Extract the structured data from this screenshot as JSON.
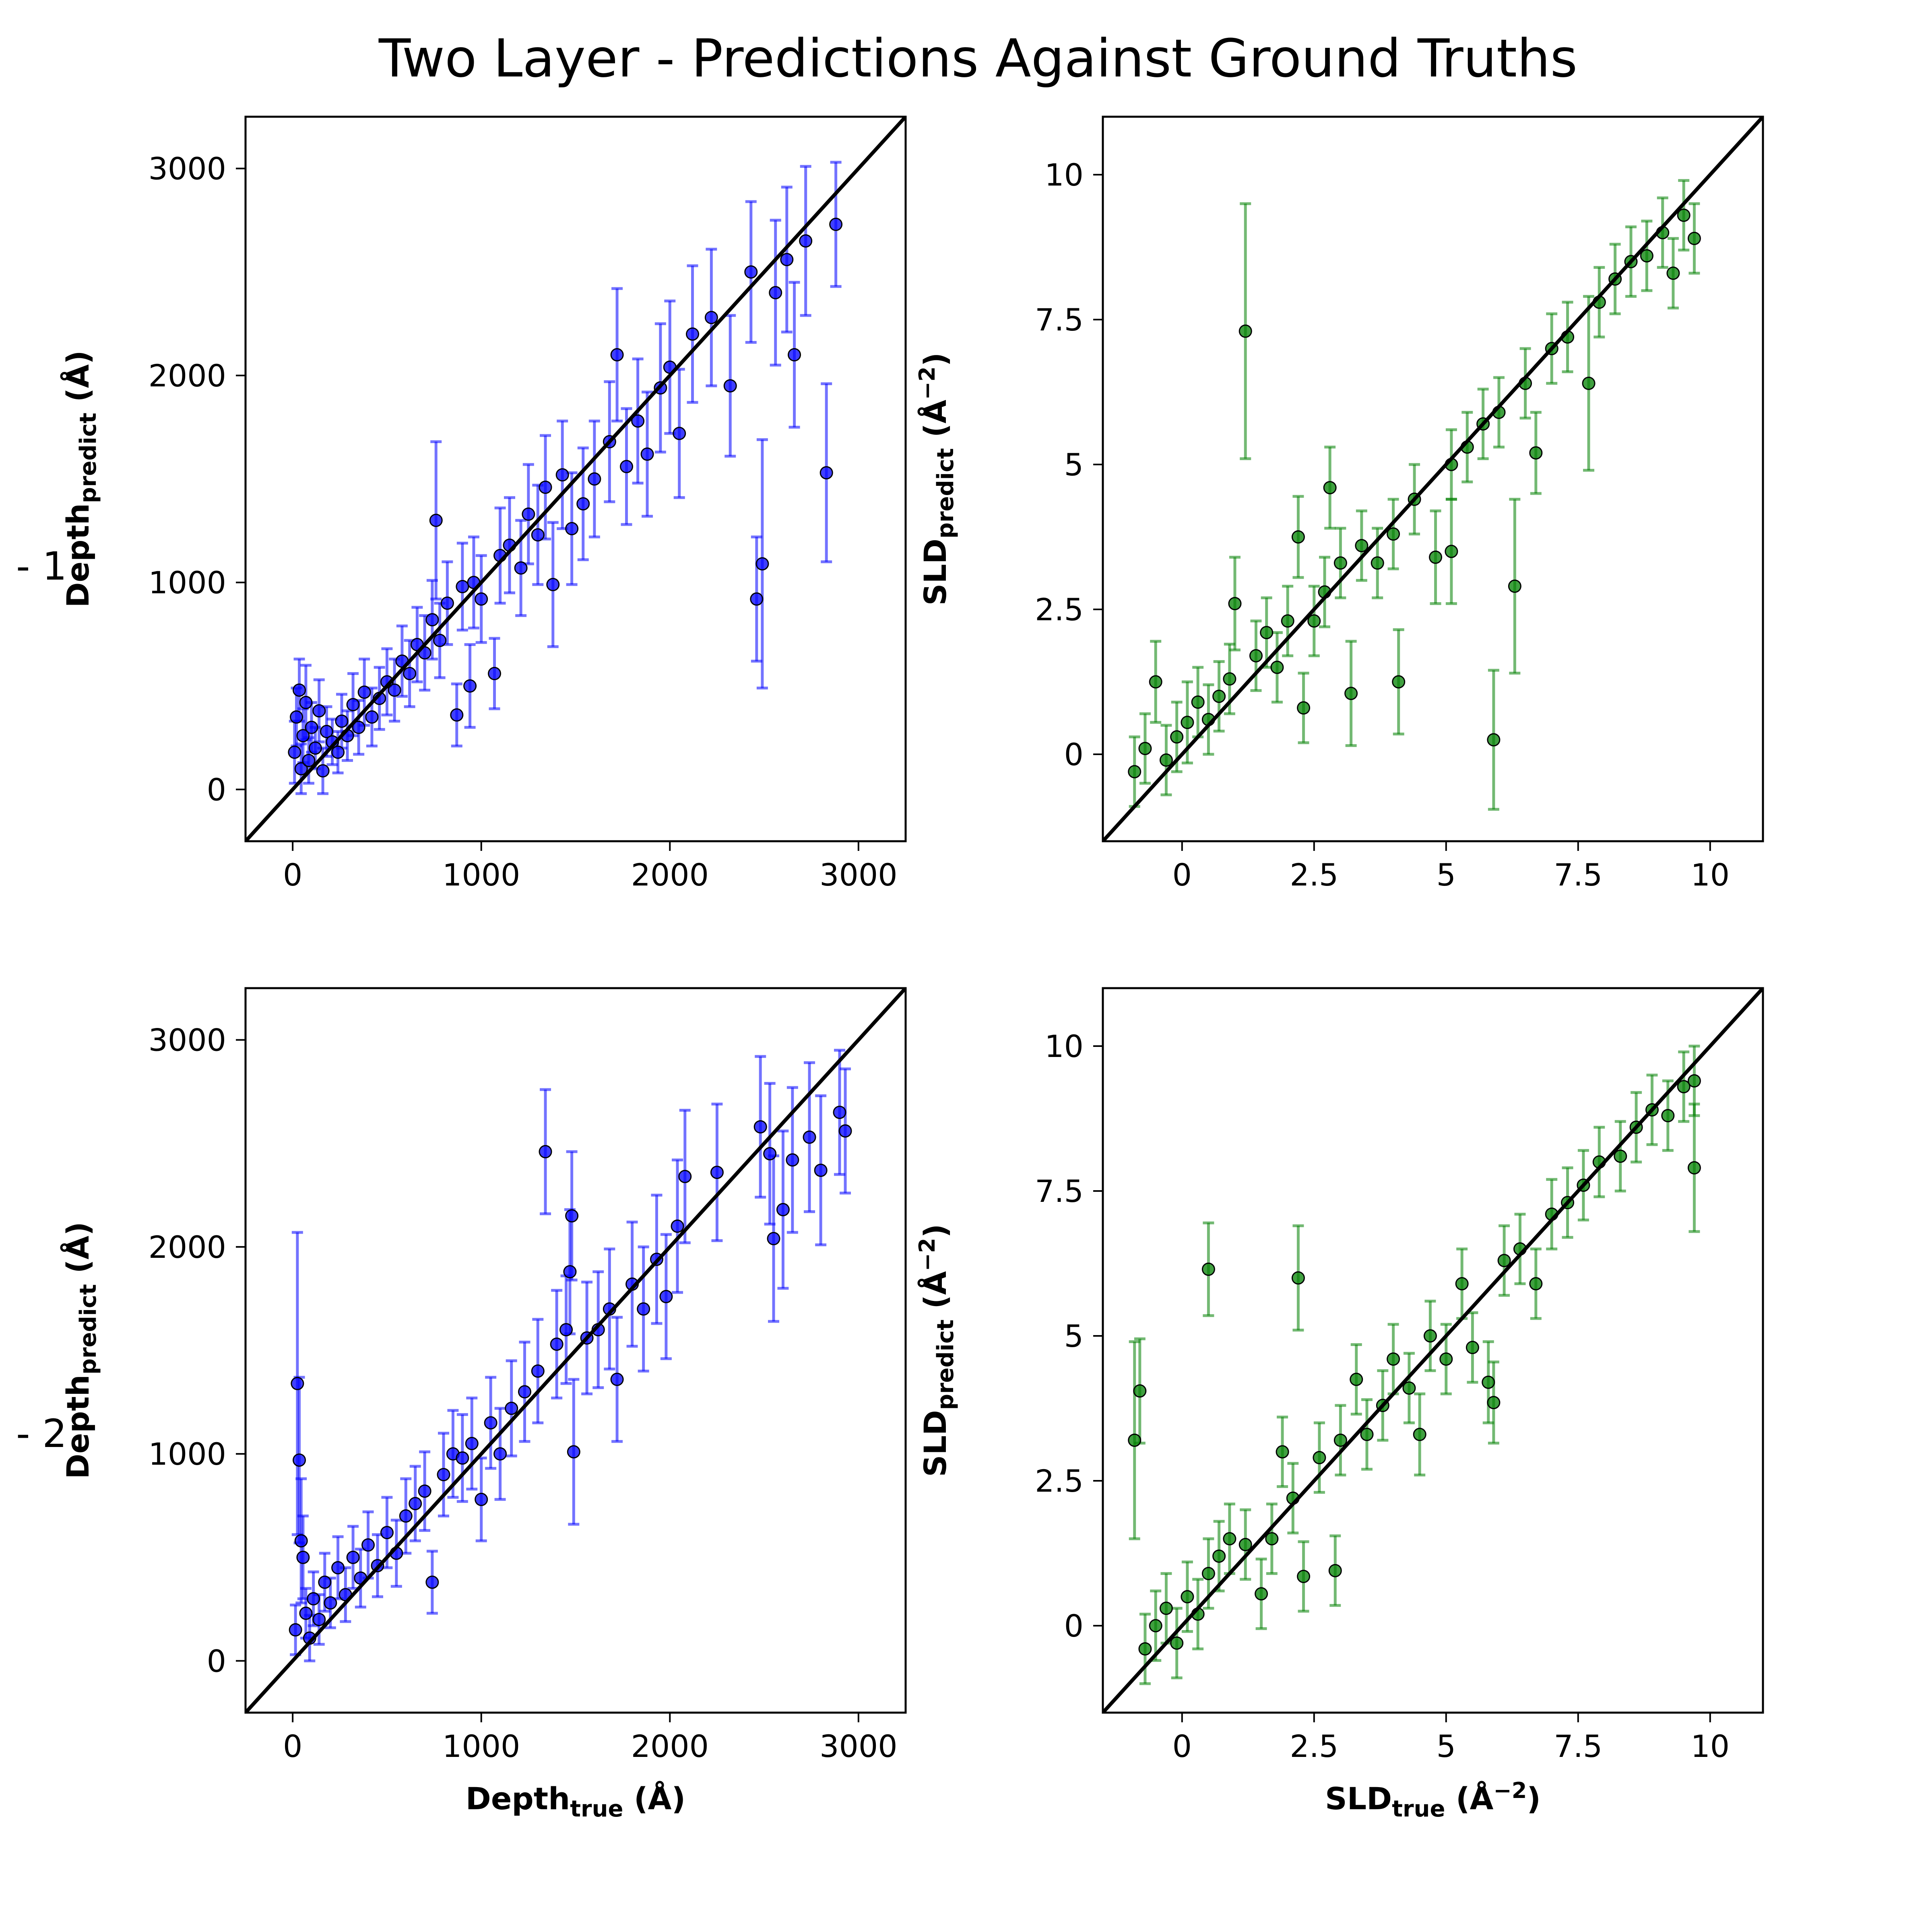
{
  "title": "Two Layer - Predictions Against Ground Truths",
  "row_labels": [
    "1",
    "2"
  ],
  "colors": {
    "depth_series": "#0000ff",
    "sld_series": "#008000",
    "identity_line": "#000000",
    "marker_edge": "#000000"
  },
  "chart_data": [
    {
      "id": "depth-layer-1",
      "type": "scatter",
      "title": "",
      "xlabel": "",
      "ylabel": {
        "main": "Depth",
        "sub": "predict",
        "unit": " (Å)"
      },
      "xlim": [
        -250,
        3250
      ],
      "ylim": [
        -250,
        3250
      ],
      "xticks": [
        0,
        1000,
        2000,
        3000
      ],
      "xtick_labels": [
        "0",
        "1000",
        "2000",
        "3000"
      ],
      "yticks": [
        0,
        1000,
        2000,
        3000
      ],
      "ytick_labels": [
        "0",
        "1000",
        "2000",
        "3000"
      ],
      "grid": false,
      "identity_line": true,
      "points": [
        [
          10,
          180,
          150
        ],
        [
          20,
          350,
          140
        ],
        [
          35,
          480,
          150
        ],
        [
          45,
          100,
          120
        ],
        [
          55,
          260,
          130
        ],
        [
          70,
          420,
          180
        ],
        [
          85,
          140,
          110
        ],
        [
          100,
          300,
          120
        ],
        [
          120,
          200,
          100
        ],
        [
          140,
          380,
          150
        ],
        [
          160,
          90,
          110
        ],
        [
          180,
          280,
          120
        ],
        [
          210,
          230,
          110
        ],
        [
          240,
          180,
          100
        ],
        [
          260,
          330,
          130
        ],
        [
          290,
          260,
          120
        ],
        [
          320,
          410,
          150
        ],
        [
          350,
          300,
          130
        ],
        [
          380,
          470,
          160
        ],
        [
          420,
          350,
          140
        ],
        [
          460,
          440,
          150
        ],
        [
          500,
          520,
          160
        ],
        [
          540,
          480,
          150
        ],
        [
          580,
          620,
          170
        ],
        [
          620,
          560,
          160
        ],
        [
          660,
          700,
          180
        ],
        [
          700,
          660,
          180
        ],
        [
          740,
          820,
          190
        ],
        [
          780,
          720,
          180
        ],
        [
          820,
          900,
          200
        ],
        [
          870,
          360,
          150
        ],
        [
          900,
          980,
          210
        ],
        [
          940,
          500,
          200
        ],
        [
          960,
          1000,
          220
        ],
        [
          1000,
          920,
          210
        ],
        [
          1070,
          560,
          170
        ],
        [
          1100,
          1130,
          230
        ],
        [
          1150,
          1180,
          230
        ],
        [
          1210,
          1070,
          230
        ],
        [
          1250,
          1330,
          240
        ],
        [
          1300,
          1230,
          240
        ],
        [
          1340,
          1460,
          250
        ],
        [
          1380,
          990,
          300
        ],
        [
          1430,
          1520,
          260
        ],
        [
          1480,
          1260,
          270
        ],
        [
          1540,
          1380,
          270
        ],
        [
          1600,
          1500,
          280
        ],
        [
          1680,
          1680,
          290
        ],
        [
          1720,
          2100,
          320
        ],
        [
          1770,
          1560,
          280
        ],
        [
          1830,
          1780,
          300
        ],
        [
          1880,
          1620,
          300
        ],
        [
          1950,
          1940,
          310
        ],
        [
          2000,
          2040,
          320
        ],
        [
          2050,
          1720,
          310
        ],
        [
          2120,
          2200,
          330
        ],
        [
          2220,
          2280,
          330
        ],
        [
          2320,
          1950,
          340
        ],
        [
          2430,
          2500,
          340
        ],
        [
          2460,
          920,
          300
        ],
        [
          2490,
          1090,
          600
        ],
        [
          2560,
          2400,
          350
        ],
        [
          2620,
          2560,
          350
        ],
        [
          2660,
          2100,
          350
        ],
        [
          2720,
          2650,
          360
        ],
        [
          2830,
          1530,
          430
        ],
        [
          2880,
          2730,
          300
        ],
        [
          760,
          1300,
          380
        ]
      ]
    },
    {
      "id": "sld-layer-1",
      "type": "scatter",
      "title": "",
      "xlabel": "",
      "ylabel": {
        "main": "SLD",
        "sub": "predict",
        "unit": " (Å",
        "sup": "−2",
        "unit_close": ")"
      },
      "xlim": [
        -1.5,
        11.0
      ],
      "ylim": [
        -1.5,
        11.0
      ],
      "xticks": [
        0,
        2.5,
        5,
        7.5,
        10
      ],
      "xtick_labels": [
        "0",
        "2.5",
        "5",
        "7.5",
        "10"
      ],
      "yticks": [
        0,
        2.5,
        5,
        7.5,
        10
      ],
      "ytick_labels": [
        "0",
        "2.5",
        "5",
        "7.5",
        "10"
      ],
      "grid": false,
      "identity_line": true,
      "points": [
        [
          -0.9,
          -0.3,
          0.6
        ],
        [
          -0.7,
          0.1,
          0.6
        ],
        [
          -0.5,
          1.25,
          0.7
        ],
        [
          -0.3,
          -0.1,
          0.6
        ],
        [
          -0.1,
          0.3,
          0.6
        ],
        [
          0.1,
          0.55,
          0.7
        ],
        [
          0.3,
          0.9,
          0.6
        ],
        [
          0.5,
          0.6,
          0.6
        ],
        [
          0.7,
          1.0,
          0.6
        ],
        [
          0.9,
          1.3,
          0.6
        ],
        [
          1.0,
          2.6,
          0.8
        ],
        [
          1.2,
          7.3,
          2.2
        ],
        [
          1.4,
          1.7,
          0.6
        ],
        [
          1.6,
          2.1,
          0.6
        ],
        [
          1.8,
          1.5,
          0.6
        ],
        [
          2.0,
          2.3,
          0.6
        ],
        [
          2.2,
          3.75,
          0.7
        ],
        [
          2.3,
          0.8,
          0.6
        ],
        [
          2.5,
          2.3,
          0.6
        ],
        [
          2.7,
          2.8,
          0.6
        ],
        [
          2.8,
          4.6,
          0.7
        ],
        [
          3.0,
          3.3,
          0.6
        ],
        [
          3.2,
          1.05,
          0.9
        ],
        [
          3.4,
          3.6,
          0.6
        ],
        [
          3.7,
          3.3,
          0.6
        ],
        [
          4.0,
          3.8,
          0.6
        ],
        [
          4.1,
          1.25,
          0.9
        ],
        [
          4.4,
          4.4,
          0.6
        ],
        [
          4.8,
          3.4,
          0.8
        ],
        [
          5.1,
          5.0,
          0.6
        ],
        [
          5.1,
          3.5,
          0.9
        ],
        [
          5.4,
          5.3,
          0.6
        ],
        [
          5.7,
          5.7,
          0.6
        ],
        [
          5.9,
          0.25,
          1.2
        ],
        [
          6.0,
          5.9,
          0.6
        ],
        [
          6.3,
          2.9,
          1.5
        ],
        [
          6.5,
          6.4,
          0.6
        ],
        [
          6.7,
          5.2,
          0.7
        ],
        [
          7.0,
          7.0,
          0.6
        ],
        [
          7.3,
          7.2,
          0.6
        ],
        [
          7.7,
          6.4,
          1.5
        ],
        [
          7.9,
          7.8,
          0.6
        ],
        [
          8.2,
          8.2,
          0.6
        ],
        [
          8.5,
          8.5,
          0.6
        ],
        [
          8.8,
          8.6,
          0.6
        ],
        [
          9.1,
          9.0,
          0.6
        ],
        [
          9.3,
          8.3,
          0.6
        ],
        [
          9.5,
          9.3,
          0.6
        ],
        [
          9.7,
          8.9,
          0.6
        ]
      ]
    },
    {
      "id": "depth-layer-2",
      "type": "scatter",
      "title": "",
      "xlabel": {
        "main": "Depth",
        "sub": "true",
        "unit": " (Å)"
      },
      "ylabel": {
        "main": "Depth",
        "sub": "predict",
        "unit": " (Å)"
      },
      "xlim": [
        -250,
        3250
      ],
      "ylim": [
        -250,
        3250
      ],
      "xticks": [
        0,
        1000,
        2000,
        3000
      ],
      "xtick_labels": [
        "0",
        "1000",
        "2000",
        "3000"
      ],
      "yticks": [
        0,
        1000,
        2000,
        3000
      ],
      "ytick_labels": [
        "0",
        "1000",
        "2000",
        "3000"
      ],
      "grid": false,
      "identity_line": true,
      "points": [
        [
          15,
          150,
          120
        ],
        [
          25,
          1340,
          730
        ],
        [
          35,
          970,
          400
        ],
        [
          45,
          580,
          300
        ],
        [
          55,
          500,
          200
        ],
        [
          70,
          230,
          120
        ],
        [
          90,
          110,
          110
        ],
        [
          110,
          300,
          130
        ],
        [
          140,
          200,
          120
        ],
        [
          170,
          380,
          140
        ],
        [
          200,
          280,
          120
        ],
        [
          240,
          450,
          150
        ],
        [
          280,
          320,
          130
        ],
        [
          320,
          500,
          150
        ],
        [
          360,
          400,
          140
        ],
        [
          400,
          560,
          160
        ],
        [
          450,
          460,
          150
        ],
        [
          500,
          620,
          170
        ],
        [
          550,
          520,
          160
        ],
        [
          600,
          700,
          180
        ],
        [
          650,
          760,
          180
        ],
        [
          700,
          820,
          190
        ],
        [
          740,
          380,
          150
        ],
        [
          800,
          900,
          200
        ],
        [
          850,
          1000,
          210
        ],
        [
          900,
          980,
          210
        ],
        [
          950,
          1050,
          220
        ],
        [
          1000,
          780,
          200
        ],
        [
          1050,
          1150,
          220
        ],
        [
          1100,
          1000,
          220
        ],
        [
          1160,
          1220,
          230
        ],
        [
          1230,
          1300,
          240
        ],
        [
          1300,
          1400,
          250
        ],
        [
          1340,
          2460,
          300
        ],
        [
          1400,
          1530,
          260
        ],
        [
          1450,
          1600,
          260
        ],
        [
          1470,
          1880,
          300
        ],
        [
          1480,
          2150,
          310
        ],
        [
          1490,
          1010,
          350
        ],
        [
          1560,
          1560,
          270
        ],
        [
          1620,
          1600,
          280
        ],
        [
          1680,
          1700,
          290
        ],
        [
          1720,
          1360,
          300
        ],
        [
          1800,
          1820,
          300
        ],
        [
          1860,
          1700,
          300
        ],
        [
          1930,
          1940,
          310
        ],
        [
          1980,
          1760,
          300
        ],
        [
          2040,
          2100,
          320
        ],
        [
          2080,
          2340,
          320
        ],
        [
          2250,
          2360,
          330
        ],
        [
          2480,
          2580,
          340
        ],
        [
          2530,
          2450,
          340
        ],
        [
          2550,
          2040,
          400
        ],
        [
          2600,
          2180,
          380
        ],
        [
          2650,
          2420,
          350
        ],
        [
          2740,
          2530,
          360
        ],
        [
          2800,
          2370,
          360
        ],
        [
          2900,
          2650,
          300
        ],
        [
          2930,
          2560,
          300
        ]
      ]
    },
    {
      "id": "sld-layer-2",
      "type": "scatter",
      "title": "",
      "xlabel": {
        "main": "SLD",
        "sub": "true",
        "unit": " (Å",
        "sup": "−2",
        "unit_close": ")"
      },
      "ylabel": {
        "main": "SLD",
        "sub": "predict",
        "unit": " (Å",
        "sup": "−2",
        "unit_close": ")"
      },
      "xlim": [
        -1.5,
        11.0
      ],
      "ylim": [
        -1.5,
        11.0
      ],
      "xticks": [
        0,
        2.5,
        5,
        7.5,
        10
      ],
      "xtick_labels": [
        "0",
        "2.5",
        "5",
        "7.5",
        "10"
      ],
      "yticks": [
        0,
        2.5,
        5,
        7.5,
        10
      ],
      "ytick_labels": [
        "0",
        "2.5",
        "5",
        "7.5",
        "10"
      ],
      "grid": false,
      "identity_line": true,
      "points": [
        [
          -0.9,
          3.2,
          1.7
        ],
        [
          -0.8,
          4.05,
          0.9
        ],
        [
          -0.7,
          -0.4,
          0.6
        ],
        [
          -0.5,
          0.0,
          0.6
        ],
        [
          -0.3,
          0.3,
          0.6
        ],
        [
          -0.1,
          -0.3,
          0.6
        ],
        [
          0.1,
          0.5,
          0.6
        ],
        [
          0.3,
          0.2,
          0.6
        ],
        [
          0.5,
          6.15,
          0.8
        ],
        [
          0.5,
          0.9,
          0.6
        ],
        [
          0.7,
          1.2,
          0.6
        ],
        [
          0.9,
          1.5,
          0.6
        ],
        [
          1.2,
          1.4,
          0.6
        ],
        [
          1.5,
          0.55,
          0.6
        ],
        [
          1.7,
          1.5,
          0.6
        ],
        [
          1.9,
          3.0,
          0.6
        ],
        [
          2.1,
          2.2,
          0.6
        ],
        [
          2.2,
          6.0,
          0.9
        ],
        [
          2.3,
          0.85,
          0.6
        ],
        [
          2.6,
          2.9,
          0.6
        ],
        [
          2.9,
          0.95,
          0.6
        ],
        [
          3.0,
          3.2,
          0.6
        ],
        [
          3.3,
          4.25,
          0.6
        ],
        [
          3.5,
          3.3,
          0.6
        ],
        [
          3.8,
          3.8,
          0.6
        ],
        [
          4.0,
          4.6,
          0.6
        ],
        [
          4.3,
          4.1,
          0.6
        ],
        [
          4.5,
          3.3,
          0.7
        ],
        [
          4.7,
          5.0,
          0.6
        ],
        [
          5.0,
          4.6,
          0.6
        ],
        [
          5.3,
          5.9,
          0.6
        ],
        [
          5.5,
          4.8,
          0.6
        ],
        [
          5.8,
          4.2,
          0.7
        ],
        [
          5.9,
          3.85,
          0.7
        ],
        [
          6.1,
          6.3,
          0.6
        ],
        [
          6.4,
          6.5,
          0.6
        ],
        [
          6.7,
          5.9,
          0.6
        ],
        [
          7.0,
          7.1,
          0.6
        ],
        [
          7.3,
          7.3,
          0.6
        ],
        [
          7.6,
          7.6,
          0.6
        ],
        [
          7.9,
          8.0,
          0.6
        ],
        [
          8.3,
          8.1,
          0.6
        ],
        [
          8.6,
          8.6,
          0.6
        ],
        [
          8.9,
          8.9,
          0.6
        ],
        [
          9.2,
          8.8,
          0.6
        ],
        [
          9.5,
          9.3,
          0.6
        ],
        [
          9.7,
          7.9,
          1.1
        ],
        [
          9.7,
          9.4,
          0.6
        ]
      ]
    }
  ]
}
